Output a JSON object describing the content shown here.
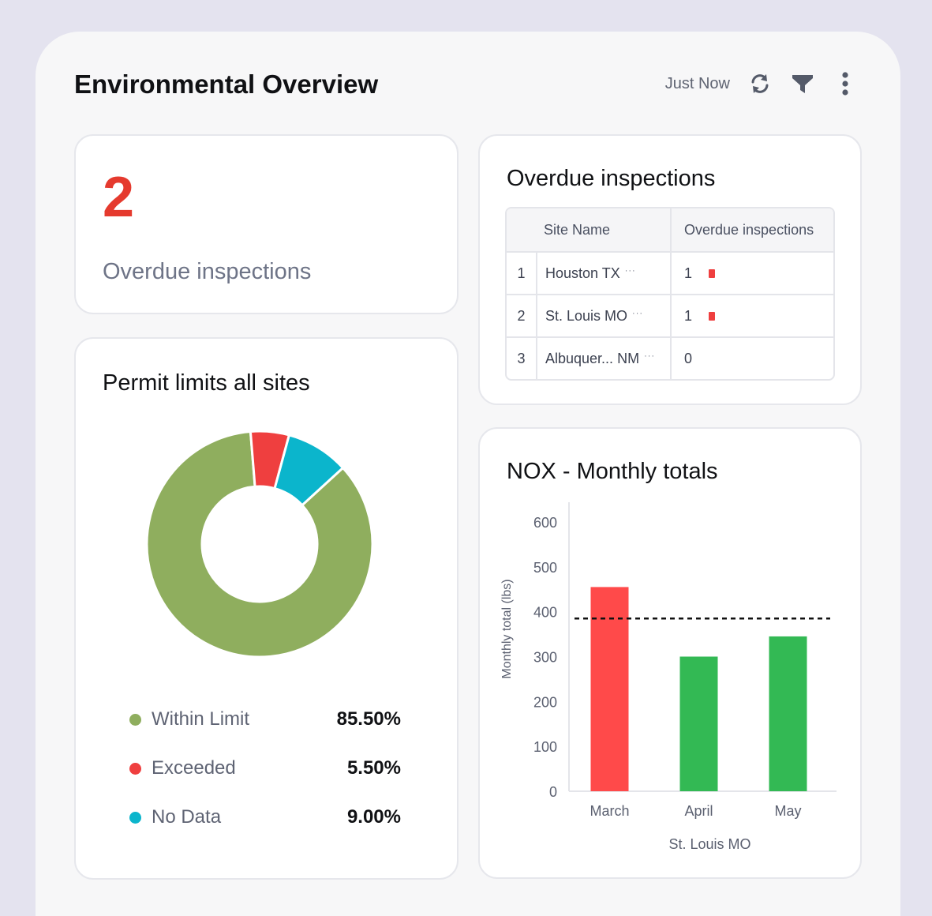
{
  "header": {
    "title": "Environmental Overview",
    "last_updated": "Just Now",
    "refresh_icon": "refresh-icon",
    "filter_icon": "filter-icon",
    "more_icon": "more-vertical-icon"
  },
  "kpi": {
    "value": "2",
    "label": "Overdue inspections",
    "value_color": "#e53a2e"
  },
  "inspections_table": {
    "title": "Overdue inspections",
    "columns": [
      "Site Name",
      "Overdue inspections"
    ],
    "rows": [
      {
        "index": "1",
        "site": "Houston TX",
        "overdue": "1",
        "flagged": true
      },
      {
        "index": "2",
        "site": "St. Louis MO",
        "overdue": "1",
        "flagged": true
      },
      {
        "index": "3",
        "site": "Albuquer... NM",
        "overdue": "0",
        "flagged": false
      }
    ],
    "ellipsis": "···",
    "flag_color": "#ef3f3f"
  },
  "permit_chart": {
    "title": "Permit limits all sites",
    "legend": [
      {
        "label": "Within Limit",
        "value": "85.50%",
        "color": "#8fae5e"
      },
      {
        "label": "Exceeded",
        "value": "5.50%",
        "color": "#ef3f3f"
      },
      {
        "label": "No Data",
        "value": "9.00%",
        "color": "#0bb5cc"
      }
    ]
  },
  "nox_chart": {
    "title": "NOX - Monthly totals"
  },
  "chart_data": [
    {
      "type": "pie",
      "title": "Permit limits all sites",
      "donut": true,
      "labels": [
        "Within Limit",
        "Exceeded",
        "No Data"
      ],
      "values": [
        85.5,
        5.5,
        9.0
      ],
      "colors": [
        "#8fae5e",
        "#ef3f3f",
        "#0bb5cc"
      ],
      "legend_placement": "bottom"
    },
    {
      "type": "bar",
      "title": "NOX - Monthly totals",
      "categories": [
        "March",
        "April",
        "May"
      ],
      "values": [
        455,
        300,
        345
      ],
      "colors": [
        "#ff4a4a",
        "#33b954",
        "#33b954"
      ],
      "threshold": 385,
      "xlabel": "St. Louis MO",
      "ylabel": "Monthly total (lbs)",
      "ylim": [
        0,
        600
      ],
      "yticks": [
        0,
        100,
        200,
        300,
        400,
        500,
        600
      ],
      "grid": false
    }
  ]
}
